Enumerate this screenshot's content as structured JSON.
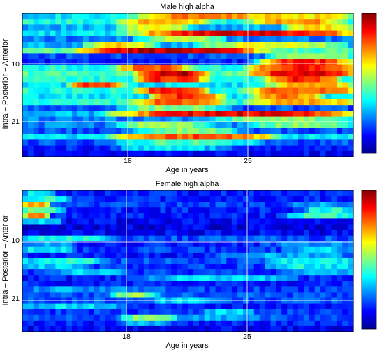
{
  "chart_data": [
    {
      "type": "heatmap",
      "title": "Male high alpha",
      "xlabel": "Age in years",
      "ylabel": "Intra − Posterior − Anterior",
      "xticks": [
        "18",
        "25"
      ],
      "yticks": [
        "10",
        "21"
      ],
      "colormap": "jet",
      "colorbar": true,
      "gridlines": "white",
      "rows": [
        {
          "level": 0.35,
          "hot": [
            [
              0.36,
              0.75,
              0.4
            ],
            [
              0.75,
              1.0,
              0.3
            ]
          ]
        },
        {
          "level": 0.4,
          "hot": [
            [
              0.3,
              0.55,
              0.3
            ],
            [
              0.7,
              0.95,
              0.35
            ]
          ]
        },
        {
          "level": 0.3,
          "hot": [
            [
              0.3,
              0.5,
              0.3
            ],
            [
              0.8,
              1.0,
              0.35
            ]
          ]
        },
        {
          "level": 0.35,
          "hot": [
            [
              0.36,
              1.0,
              0.55
            ]
          ]
        },
        {
          "level": 0.25,
          "hot": [
            [
              0.36,
              0.6,
              0.3
            ]
          ]
        },
        {
          "level": 0.3,
          "hot": [
            [
              0.2,
              0.4,
              0.35
            ],
            [
              0.55,
              0.95,
              0.3
            ]
          ]
        },
        {
          "level": 0.45,
          "hot": [
            [
              0.2,
              0.7,
              0.5
            ]
          ]
        },
        {
          "level": 0.2,
          "hot": [
            [
              0.75,
              1.0,
              0.35
            ]
          ]
        },
        {
          "level": 0.15,
          "hot": [
            [
              0.72,
              1.0,
              0.7
            ]
          ]
        },
        {
          "level": 0.4,
          "hot": [
            [
              0.3,
              0.5,
              0.4
            ],
            [
              0.7,
              1.0,
              0.45
            ]
          ]
        },
        {
          "level": 0.45,
          "hot": [
            [
              0.35,
              0.55,
              0.5
            ],
            [
              0.7,
              1.0,
              0.45
            ]
          ]
        },
        {
          "level": 0.4,
          "hot": [
            [
              0.35,
              0.55,
              0.45
            ],
            [
              0.75,
              0.95,
              0.45
            ]
          ]
        },
        {
          "level": 0.35,
          "hot": [
            [
              0.15,
              0.3,
              0.5
            ],
            [
              0.75,
              1.0,
              0.35
            ]
          ]
        },
        {
          "level": 0.4,
          "hot": [
            [
              0.35,
              0.55,
              0.45
            ],
            [
              0.7,
              1.0,
              0.4
            ]
          ]
        },
        {
          "level": 0.35,
          "hot": [
            [
              0.4,
              0.6,
              0.5
            ],
            [
              0.7,
              0.9,
              0.4
            ]
          ]
        },
        {
          "level": 0.4,
          "hot": [
            [
              0.35,
              0.6,
              0.4
            ],
            [
              0.7,
              1.0,
              0.3
            ]
          ]
        },
        {
          "level": 0.2,
          "hot": [
            [
              0.3,
              0.6,
              0.3
            ]
          ]
        },
        {
          "level": 0.3,
          "hot": [
            [
              0.3,
              1.0,
              0.6
            ]
          ]
        },
        {
          "level": 0.25,
          "hot": [
            [
              0.6,
              1.0,
              0.25
            ]
          ]
        },
        {
          "level": 0.25,
          "hot": [
            [
              0.3,
              0.55,
              0.3
            ],
            [
              0.7,
              1.0,
              0.25
            ]
          ]
        },
        {
          "level": 0.2,
          "hot": [
            [
              0.35,
              0.65,
              0.3
            ]
          ]
        },
        {
          "level": 0.35,
          "hot": [
            [
              0.3,
              0.75,
              0.45
            ]
          ]
        },
        {
          "level": 0.2,
          "hot": [
            [
              0.3,
              0.7,
              0.25
            ]
          ]
        },
        {
          "level": 0.15,
          "hot": [
            [
              0.3,
              0.6,
              0.2
            ]
          ]
        },
        {
          "level": 0.12,
          "hot": []
        }
      ]
    },
    {
      "type": "heatmap",
      "title": "Female high alpha",
      "xlabel": "Age in years",
      "ylabel": "Intra − Posterior − Anterior",
      "xticks": [
        "18",
        "25"
      ],
      "yticks": [
        "10",
        "21"
      ],
      "colormap": "jet",
      "colorbar": true,
      "gridlines": "white",
      "rows": [
        {
          "level": 0.15,
          "hot": [
            [
              0.0,
              0.1,
              0.2
            ]
          ]
        },
        {
          "level": 0.15,
          "hot": [
            [
              0.0,
              0.15,
              0.25
            ]
          ]
        },
        {
          "level": 0.18,
          "hot": [
            [
              0.0,
              0.08,
              0.55
            ],
            [
              0.8,
              1.0,
              0.1
            ]
          ]
        },
        {
          "level": 0.15,
          "hot": [
            [
              0.0,
              0.12,
              0.35
            ],
            [
              0.85,
              1.0,
              0.25
            ]
          ]
        },
        {
          "level": 0.15,
          "hot": [
            [
              0.0,
              0.08,
              0.6
            ],
            [
              0.8,
              1.0,
              0.3
            ]
          ]
        },
        {
          "level": 0.12,
          "hot": [
            [
              0.0,
              0.12,
              0.2
            ]
          ]
        },
        {
          "level": 0.1,
          "hot": []
        },
        {
          "level": 0.12,
          "hot": []
        },
        {
          "level": 0.2,
          "hot": [
            [
              0.0,
              0.25,
              0.2
            ]
          ]
        },
        {
          "level": 0.15,
          "hot": [
            [
              0.0,
              0.15,
              0.15
            ],
            [
              0.75,
              1.0,
              0.1
            ]
          ]
        },
        {
          "level": 0.18,
          "hot": [
            [
              0.0,
              0.15,
              0.2
            ],
            [
              0.8,
              1.0,
              0.15
            ]
          ]
        },
        {
          "level": 0.15,
          "hot": [
            [
              0.6,
              1.0,
              0.15
            ]
          ]
        },
        {
          "level": 0.2,
          "hot": [
            [
              0.0,
              0.25,
              0.2
            ],
            [
              0.75,
              1.0,
              0.2
            ]
          ]
        },
        {
          "level": 0.18,
          "hot": [
            [
              0.0,
              0.2,
              0.15
            ],
            [
              0.75,
              1.0,
              0.2
            ]
          ]
        },
        {
          "level": 0.18,
          "hot": [
            [
              0.1,
              0.3,
              0.15
            ],
            [
              0.8,
              1.0,
              0.15
            ]
          ]
        },
        {
          "level": 0.15,
          "hot": [
            [
              0.4,
              0.8,
              0.2
            ]
          ]
        },
        {
          "level": 0.15,
          "hot": []
        },
        {
          "level": 0.18,
          "hot": [
            [
              0.0,
              0.4,
              0.1
            ]
          ]
        },
        {
          "level": 0.2,
          "hot": [
            [
              0.28,
              0.4,
              0.35
            ]
          ]
        },
        {
          "level": 0.2,
          "hot": [
            [
              0.4,
              0.6,
              0.15
            ]
          ]
        },
        {
          "level": 0.15,
          "hot": [
            [
              0.0,
              0.3,
              0.2
            ]
          ]
        },
        {
          "level": 0.18,
          "hot": [
            [
              0.55,
              0.7,
              0.15
            ]
          ]
        },
        {
          "level": 0.2,
          "hot": [
            [
              0.3,
              0.45,
              0.3
            ],
            [
              0.4,
              0.7,
              0.1
            ]
          ]
        },
        {
          "level": 0.15,
          "hot": [
            [
              0.3,
              0.45,
              0.15
            ]
          ]
        },
        {
          "level": 0.12,
          "hot": []
        }
      ]
    }
  ]
}
